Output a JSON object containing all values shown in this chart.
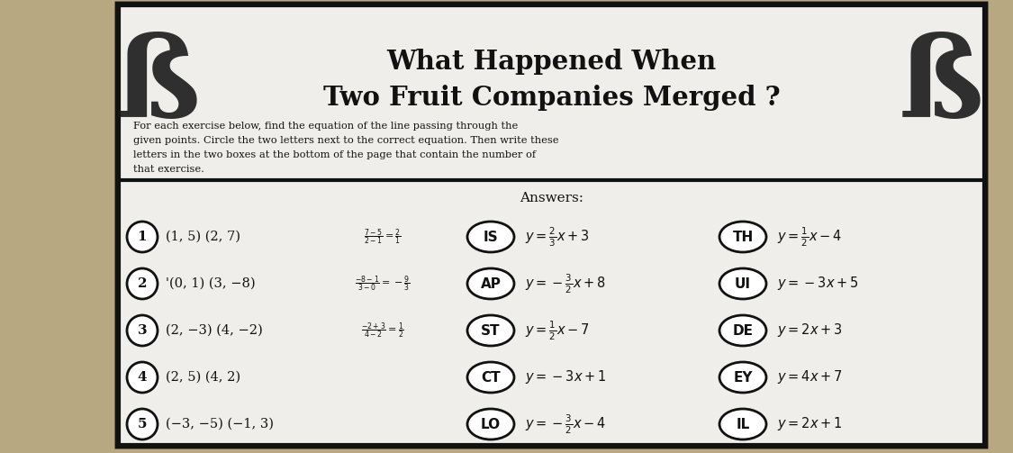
{
  "title_line1": "What Happened When",
  "title_line2": "Two Fruit Companies Merged ?",
  "instructions": "For each exercise below, find the equation of the line passing through the\ngiven points. Circle the two letters next to the correct equation. Then write these\nletters in the two boxes at the bottom of the page that contain the number of\nthat exercise.",
  "answers_label": "Answers:",
  "outer_bg": "#b8a882",
  "paper_color": "#f0eeea",
  "border_color": "#111111",
  "exercises": [
    {
      "num": "1",
      "points": "(1, 5) (2, 7)",
      "work_text": "$\\frac{7-5}{2-1} = \\frac{2}{1}$",
      "opt1_letters": "IS",
      "opt1_eq": "$y = \\frac{2}{3}x + 3$",
      "opt2_letters": "TH",
      "opt2_eq": "$y = \\frac{1}{2}x - 4$"
    },
    {
      "num": "2",
      "points": "'(0, 1) (3, −8)",
      "work_text": "$\\frac{-8-1}{3-0} = -\\frac{9}{3}$",
      "opt1_letters": "AP",
      "opt1_eq": "$y = -\\frac{3}{2}x + 8$",
      "opt2_letters": "UI",
      "opt2_eq": "$y = -3x + 5$"
    },
    {
      "num": "3",
      "points": "(2, −3) (4, −2)",
      "work_text": "$\\frac{-2+3}{4-2} = \\frac{1}{2}$",
      "opt1_letters": "ST",
      "opt1_eq": "$y = \\frac{1}{2}x - 7$",
      "opt2_letters": "DE",
      "opt2_eq": "$y = 2x + 3$"
    },
    {
      "num": "4",
      "points": "(2, 5) (4, 2)",
      "work_text": "",
      "opt1_letters": "CT",
      "opt1_eq": "$y = -3x + 1$",
      "opt2_letters": "EY",
      "opt2_eq": "$y = 4x + 7$"
    },
    {
      "num": "5",
      "points": "(−3, −5) (−1, 3)",
      "work_text": "",
      "opt1_letters": "LO",
      "opt1_eq": "$y = -\\frac{3}{2}x - 4$",
      "opt2_letters": "IL",
      "opt2_eq": "$y = 2x + 1$"
    }
  ],
  "title_fontsize": 21,
  "instructions_fontsize": 8.2,
  "answers_fontsize": 11,
  "exercise_fontsize": 10.5,
  "eq_fontsize": 10.5,
  "work_fontsize": 8.0
}
